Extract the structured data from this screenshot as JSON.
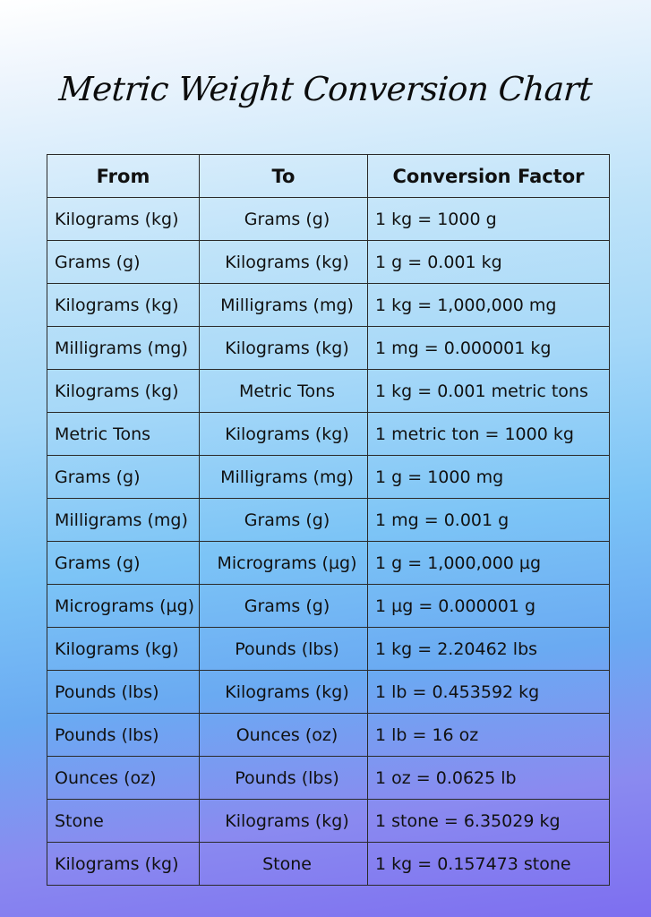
{
  "title": "Metric Weight Conversion Chart",
  "table": {
    "headers": [
      "From",
      "To",
      "Conversion Factor"
    ],
    "rows": [
      [
        "Kilograms (kg)",
        "Grams (g)",
        "1 kg = 1000 g"
      ],
      [
        "Grams (g)",
        "Kilograms (kg)",
        "1 g = 0.001 kg"
      ],
      [
        "Kilograms (kg)",
        "Milligrams (mg)",
        "1 kg = 1,000,000 mg"
      ],
      [
        "Milligrams (mg)",
        "Kilograms (kg)",
        "1 mg = 0.000001 kg"
      ],
      [
        "Kilograms (kg)",
        "Metric Tons",
        "1 kg = 0.001 metric tons"
      ],
      [
        "Metric Tons",
        "Kilograms (kg)",
        "1 metric ton = 1000 kg"
      ],
      [
        "Grams (g)",
        "Milligrams (mg)",
        "1 g = 1000 mg"
      ],
      [
        "Milligrams (mg)",
        "Grams (g)",
        "1 mg = 0.001 g"
      ],
      [
        "Grams (g)",
        "Micrograms (µg)",
        "1 g = 1,000,000 µg"
      ],
      [
        "Micrograms (µg)",
        "Grams (g)",
        "1 µg = 0.000001 g"
      ],
      [
        "Kilograms (kg)",
        "Pounds (lbs)",
        "1 kg = 2.20462 lbs"
      ],
      [
        "Pounds (lbs)",
        "Kilograms (kg)",
        "1 lb = 0.453592 kg"
      ],
      [
        "Pounds (lbs)",
        "Ounces (oz)",
        "1 lb = 16 oz"
      ],
      [
        "Ounces (oz)",
        "Pounds (lbs)",
        "1 oz = 0.0625 lb"
      ],
      [
        "Stone",
        "Kilograms (kg)",
        "1 stone = 6.35029 kg"
      ],
      [
        "Kilograms (kg)",
        "Stone",
        "1 kg = 0.157473 stone"
      ]
    ]
  }
}
